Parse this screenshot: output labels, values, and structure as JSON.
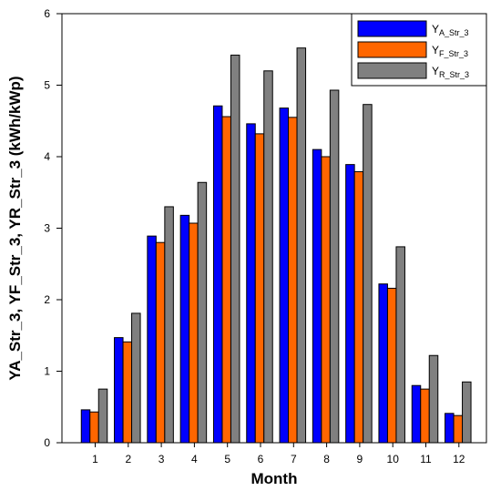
{
  "chart_data": {
    "type": "bar",
    "xlabel": "Month",
    "ylabel": "YA_Str_3, YF_Str_3, YR_Str_3 (kWh/kWp)",
    "ylim": [
      0,
      6
    ],
    "yticks": [
      "0",
      "1",
      "2",
      "3",
      "4",
      "5",
      "6"
    ],
    "categories": [
      "1",
      "2",
      "3",
      "4",
      "5",
      "6",
      "7",
      "8",
      "9",
      "10",
      "11",
      "12"
    ],
    "grid": false,
    "legend_position": "top-right",
    "series": [
      {
        "name": "YA_Str_3",
        "legend_main": "Y",
        "legend_sub": "A_Str_3",
        "color": "#0000ff",
        "values": [
          0.46,
          1.47,
          2.89,
          3.18,
          4.71,
          4.46,
          4.68,
          4.1,
          3.89,
          2.22,
          0.8,
          0.41
        ]
      },
      {
        "name": "YF_Str_3",
        "legend_main": "Y",
        "legend_sub": "F_Str_3",
        "color": "#ff6600",
        "values": [
          0.43,
          1.41,
          2.8,
          3.07,
          4.56,
          4.32,
          4.55,
          4.0,
          3.79,
          2.16,
          0.75,
          0.38
        ]
      },
      {
        "name": "YR_Str_3",
        "legend_main": "Y",
        "legend_sub": "R_Str_3",
        "color": "#808080",
        "values": [
          0.75,
          1.81,
          3.3,
          3.64,
          5.42,
          5.2,
          5.52,
          4.93,
          4.73,
          2.74,
          1.22,
          0.85
        ]
      }
    ]
  }
}
